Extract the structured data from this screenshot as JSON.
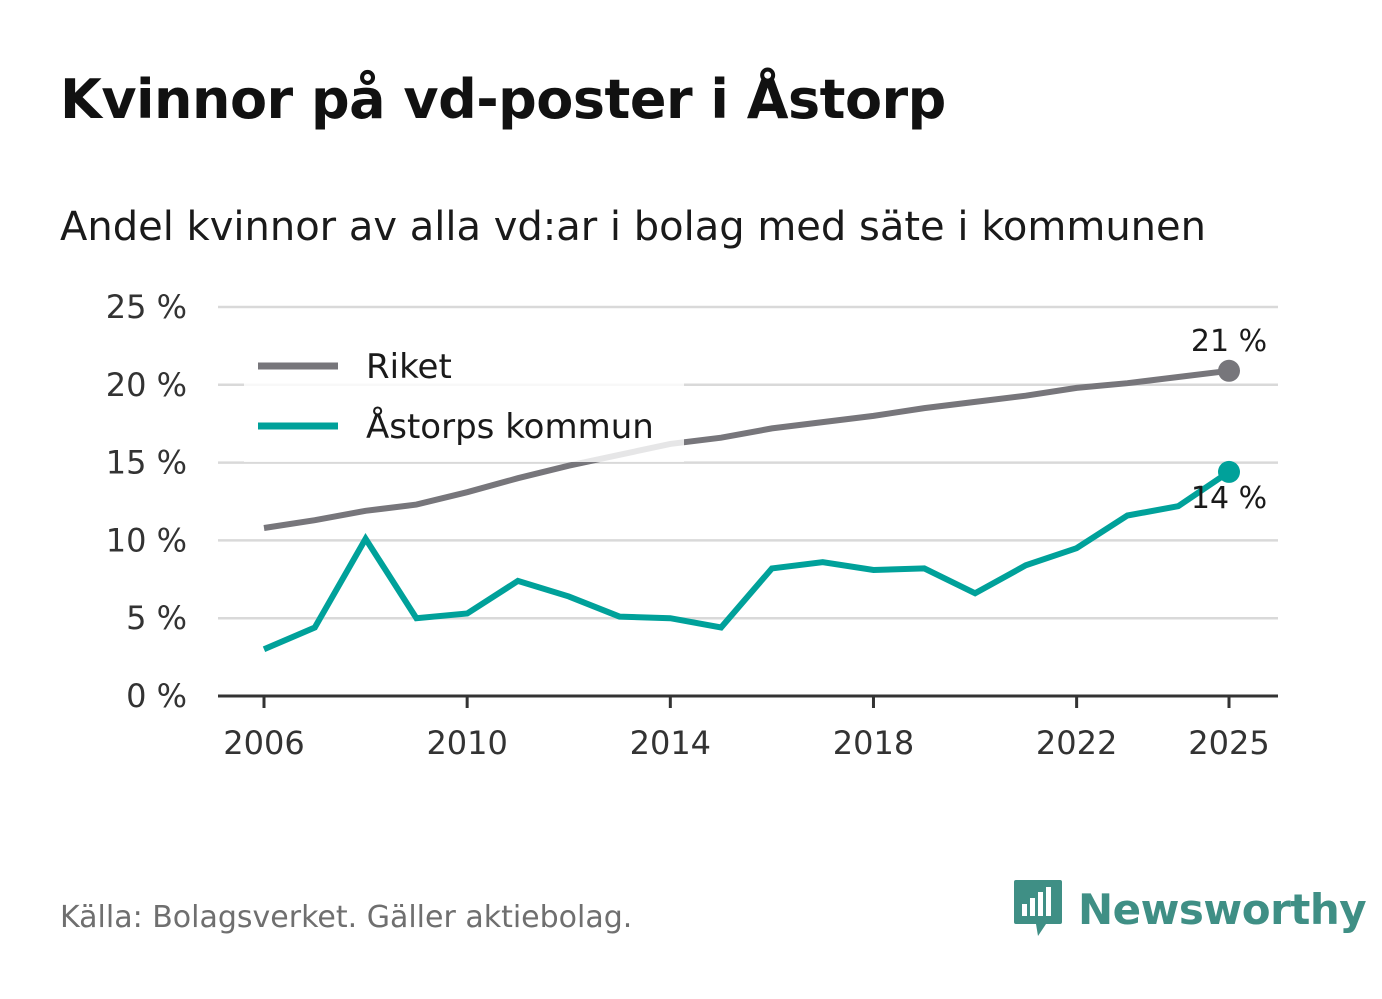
{
  "title": "Kvinnor på vd-poster i Åstorp",
  "subtitle": "Andel kvinnor av alla vd:ar i bolag med säte i kommunen",
  "source": "Källa: Bolagsverket. Gäller aktiebolag.",
  "brand": {
    "name": "Newsworthy",
    "icon": "newsworthy-logo-icon",
    "color": "#3f8f85"
  },
  "colors": {
    "riket": "#77767b",
    "astorp": "#00a19a",
    "grid": "#d9d9d9",
    "axis": "#333333"
  },
  "chart_data": {
    "type": "line",
    "title": "Kvinnor på vd-poster i Åstorp",
    "subtitle": "Andel kvinnor av alla vd:ar i bolag med säte i kommunen",
    "xlabel": "",
    "ylabel": "",
    "x": [
      2006,
      2007,
      2008,
      2009,
      2010,
      2011,
      2012,
      2013,
      2014,
      2015,
      2016,
      2017,
      2018,
      2019,
      2020,
      2021,
      2022,
      2023,
      2024,
      2025
    ],
    "xlim": [
      2006,
      2025
    ],
    "ylim": [
      0,
      25
    ],
    "yticks": [
      0,
      5,
      10,
      15,
      20,
      25
    ],
    "ytick_labels": [
      "0 %",
      "5 %",
      "10 %",
      "15 %",
      "20 %",
      "25 %"
    ],
    "xticks": [
      2006,
      2010,
      2014,
      2018,
      2022,
      2025
    ],
    "xtick_labels": [
      "2006",
      "2010",
      "2014",
      "2018",
      "2022",
      "2025"
    ],
    "grid": true,
    "legend_position": "top-left",
    "series": [
      {
        "name": "Riket",
        "color": "#77767b",
        "values": [
          10.8,
          11.3,
          11.9,
          12.3,
          13.1,
          14.0,
          14.8,
          15.5,
          16.2,
          16.6,
          17.2,
          17.6,
          18.0,
          18.5,
          18.9,
          19.3,
          19.8,
          20.1,
          20.5,
          20.9
        ],
        "end_label": "21 %"
      },
      {
        "name": "Åstorps kommun",
        "color": "#00a19a",
        "values": [
          3.0,
          4.4,
          10.1,
          5.0,
          5.3,
          7.4,
          6.4,
          5.1,
          5.0,
          4.4,
          8.2,
          8.6,
          8.1,
          8.2,
          6.6,
          8.4,
          9.5,
          11.6,
          12.2,
          14.4
        ],
        "end_label": "14 %"
      }
    ]
  }
}
